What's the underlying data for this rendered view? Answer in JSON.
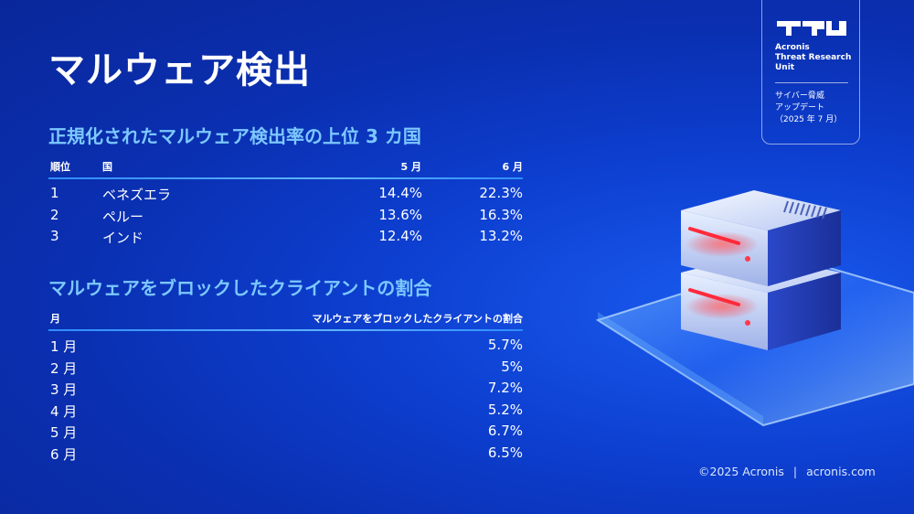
{
  "page": {
    "title": "マルウェア検出"
  },
  "section1": {
    "title": "正規化されたマルウェア検出率の上位 3 カ国",
    "headers": {
      "rank": "順位",
      "country": "国",
      "may": "5 月",
      "june": "6 月"
    },
    "rows": [
      {
        "rank": "1",
        "country": "ベネズエラ",
        "may": "14.4%",
        "june": "22.3%"
      },
      {
        "rank": "2",
        "country": "ペルー",
        "may": "13.6%",
        "june": "16.3%"
      },
      {
        "rank": "3",
        "country": "インド",
        "may": "12.4%",
        "june": "13.2%"
      }
    ]
  },
  "section2": {
    "title": "マルウェアをブロックしたクライアントの割合",
    "headers": {
      "month": "月",
      "rate": "マルウェアをブロックしたクライアントの割合"
    },
    "rows": [
      {
        "month": "1 月",
        "rate": "5.7%"
      },
      {
        "month": "2 月",
        "rate": "5%"
      },
      {
        "month": "3 月",
        "rate": "7.2%"
      },
      {
        "month": "4 月",
        "rate": "5.2%"
      },
      {
        "month": "5 月",
        "rate": "6.7%"
      },
      {
        "month": "6 月",
        "rate": "6.5%"
      }
    ]
  },
  "badge": {
    "logo_text": "TRU",
    "unit_line1": "Acronis",
    "unit_line2": "Threat Research",
    "unit_line3": "Unit",
    "update_line1": "サイバー脅威",
    "update_line2": "アップデート",
    "update_line3": "（2025 年 7 月）"
  },
  "footer": {
    "copyright": "©2025 Acronis",
    "separator": "|",
    "website": "acronis.com"
  },
  "colors": {
    "background": "#0a2fb0",
    "accent_heading": "#7cc8ff",
    "rule": "#2f8cff",
    "server_light": "#ff3040"
  },
  "icons": {
    "illustration": "server-stack-illustration",
    "logo": "tru-logo"
  }
}
